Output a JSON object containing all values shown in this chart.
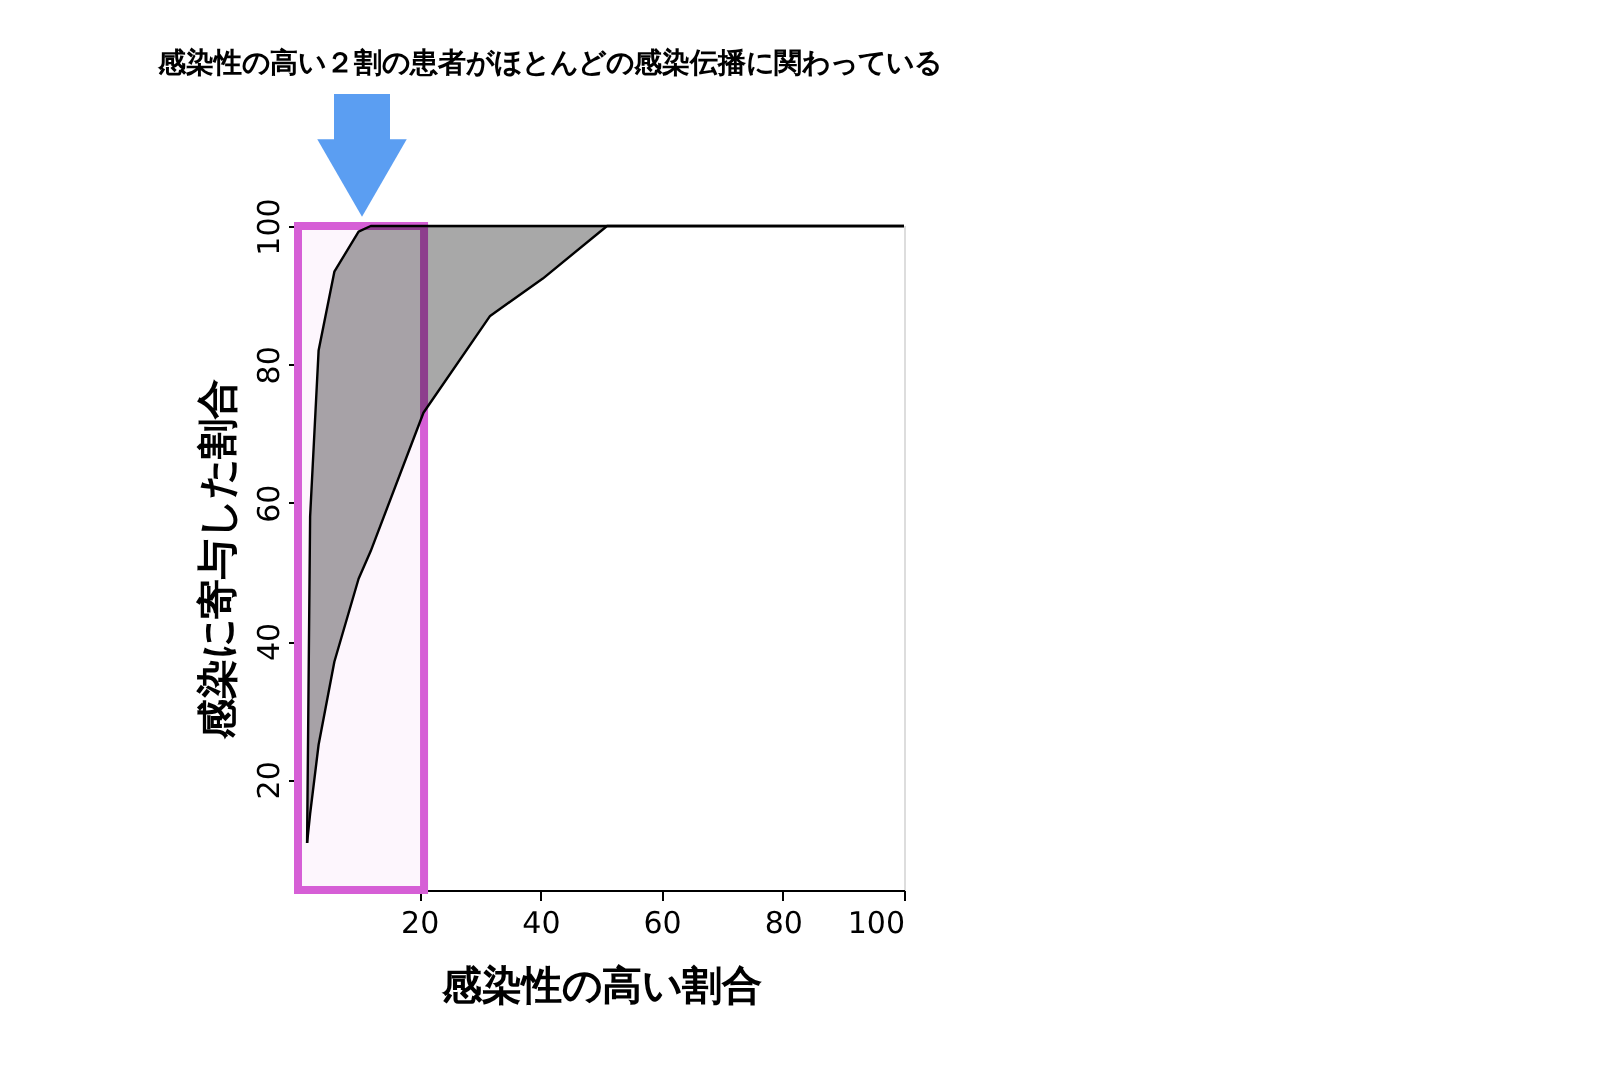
{
  "chart_data": {
    "type": "line",
    "title": "感染性の高い２割の患者がほとんどの感染伝播に関わっている",
    "xlabel": "感染性の高い割合",
    "ylabel": "感染に寄与した割合",
    "x": [
      1.5,
      2,
      3.4,
      6,
      10,
      12,
      20.7,
      31.7,
      40.4,
      51,
      100
    ],
    "series": [
      {
        "color": "#000000",
        "values": [
          10.8,
          58,
          82,
          93.4,
          99.2,
          100,
          100,
          100,
          100,
          100,
          100
        ],
        "upper": [
          10.8,
          58,
          82,
          93.4,
          99.2,
          100,
          100,
          100,
          100,
          100,
          100
        ],
        "lower": [
          10.8,
          15,
          25,
          37,
          49,
          53,
          73,
          87,
          92.4,
          100,
          100
        ]
      }
    ],
    "xlim": [
      0,
      100
    ],
    "xticks": [
      20,
      40,
      60,
      80,
      100
    ],
    "ylim": [
      4,
      100
    ],
    "yticks": [
      20,
      40,
      60,
      80,
      100
    ],
    "grid": false,
    "bands": [
      {
        "axis": "x",
        "from": 0,
        "to": 20.8,
        "color": "#d65fd6"
      }
    ]
  }
}
